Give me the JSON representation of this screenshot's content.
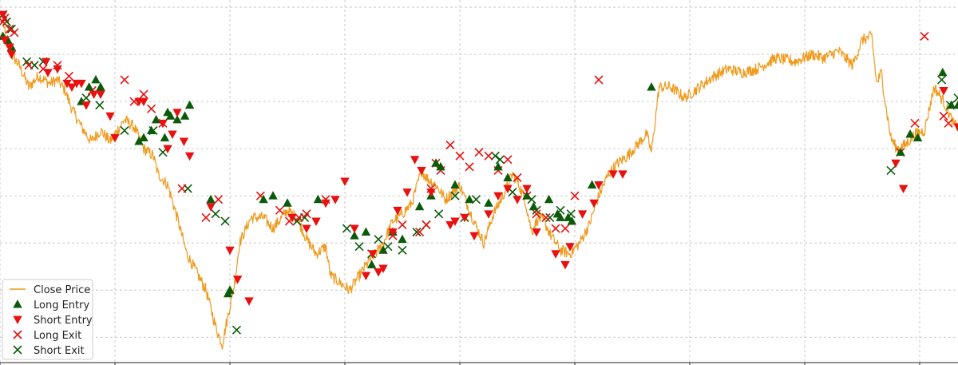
{
  "chart_data": {
    "type": "line",
    "title": "",
    "xlabel": "",
    "ylabel": "",
    "grid": true,
    "legend_position": "bottom-left",
    "xlim": [
      0,
      1000
    ],
    "ylim": [
      0,
      100
    ],
    "x_ticks": [
      0,
      120,
      240,
      360,
      480,
      600,
      720,
      840,
      960
    ],
    "y_ticks": [
      7,
      20,
      33,
      46,
      59,
      72,
      85,
      98
    ],
    "colors": {
      "close_price": "#f09a1c",
      "long_entry": "#0a5a0a",
      "short_entry": "#e8110f",
      "long_exit": "#e8110f",
      "short_exit": "#0a5a0a"
    },
    "close_price_anchors": [
      [
        3,
        94
      ],
      [
        7,
        88
      ],
      [
        12,
        85
      ],
      [
        20,
        82
      ],
      [
        30,
        76
      ],
      [
        40,
        79
      ],
      [
        52,
        77
      ],
      [
        60,
        78
      ],
      [
        68,
        75
      ],
      [
        75,
        70
      ],
      [
        85,
        65
      ],
      [
        95,
        61
      ],
      [
        105,
        64
      ],
      [
        115,
        61
      ],
      [
        130,
        67
      ],
      [
        140,
        65
      ],
      [
        150,
        59
      ],
      [
        160,
        57
      ],
      [
        165,
        52
      ],
      [
        175,
        49
      ],
      [
        185,
        40
      ],
      [
        195,
        30
      ],
      [
        205,
        25
      ],
      [
        215,
        20
      ],
      [
        225,
        10
      ],
      [
        232,
        5
      ],
      [
        238,
        13
      ],
      [
        245,
        22
      ],
      [
        250,
        33
      ],
      [
        262,
        40
      ],
      [
        275,
        40
      ],
      [
        285,
        37
      ],
      [
        300,
        42
      ],
      [
        310,
        40
      ],
      [
        320,
        34
      ],
      [
        330,
        30
      ],
      [
        340,
        32
      ],
      [
        345,
        24
      ],
      [
        355,
        22
      ],
      [
        365,
        20
      ],
      [
        375,
        24
      ],
      [
        385,
        28
      ],
      [
        395,
        31
      ],
      [
        400,
        33
      ],
      [
        410,
        39
      ],
      [
        420,
        41
      ],
      [
        430,
        44
      ],
      [
        440,
        53
      ],
      [
        445,
        51
      ],
      [
        455,
        49
      ],
      [
        465,
        45
      ],
      [
        480,
        49
      ],
      [
        490,
        42
      ],
      [
        498,
        37
      ],
      [
        505,
        33
      ],
      [
        515,
        41
      ],
      [
        525,
        46
      ],
      [
        535,
        52
      ],
      [
        540,
        50
      ],
      [
        548,
        45
      ],
      [
        555,
        36
      ],
      [
        562,
        40
      ],
      [
        568,
        39
      ],
      [
        575,
        35
      ],
      [
        585,
        31
      ],
      [
        595,
        30
      ],
      [
        605,
        33
      ],
      [
        615,
        38
      ],
      [
        625,
        46
      ],
      [
        635,
        52
      ],
      [
        645,
        55
      ],
      [
        655,
        57
      ],
      [
        665,
        60
      ],
      [
        675,
        63
      ],
      [
        680,
        58
      ],
      [
        688,
        76
      ],
      [
        700,
        76
      ],
      [
        715,
        73
      ],
      [
        730,
        76
      ],
      [
        745,
        79
      ],
      [
        760,
        81
      ],
      [
        775,
        80
      ],
      [
        790,
        81
      ],
      [
        810,
        84
      ],
      [
        830,
        83
      ],
      [
        848,
        85
      ],
      [
        860,
        84
      ],
      [
        875,
        86
      ],
      [
        890,
        82
      ],
      [
        900,
        89
      ],
      [
        910,
        90
      ],
      [
        915,
        77
      ],
      [
        920,
        80
      ],
      [
        925,
        70
      ],
      [
        930,
        62
      ],
      [
        936,
        59
      ],
      [
        945,
        60
      ],
      [
        955,
        63
      ],
      [
        965,
        64
      ],
      [
        975,
        76
      ],
      [
        985,
        72
      ],
      [
        995,
        66
      ],
      [
        1000,
        65
      ]
    ],
    "long_entry": [
      [
        3,
        90
      ],
      [
        8,
        89
      ],
      [
        12,
        87
      ],
      [
        85,
        72
      ],
      [
        93,
        76
      ],
      [
        100,
        78
      ],
      [
        105,
        76
      ],
      [
        145,
        61
      ],
      [
        150,
        62
      ],
      [
        158,
        64
      ],
      [
        163,
        67
      ],
      [
        172,
        62
      ],
      [
        175,
        69
      ],
      [
        178,
        68
      ],
      [
        185,
        67
      ],
      [
        193,
        68
      ],
      [
        198,
        71
      ],
      [
        220,
        45
      ],
      [
        238,
        19
      ],
      [
        240,
        20
      ],
      [
        275,
        45
      ],
      [
        285,
        46
      ],
      [
        300,
        44
      ],
      [
        332,
        45
      ],
      [
        370,
        35
      ],
      [
        382,
        36
      ],
      [
        388,
        27
      ],
      [
        400,
        31
      ],
      [
        410,
        36
      ],
      [
        420,
        34
      ],
      [
        438,
        43
      ],
      [
        450,
        46
      ],
      [
        455,
        55
      ],
      [
        460,
        54
      ],
      [
        475,
        49
      ],
      [
        490,
        45
      ],
      [
        510,
        44
      ],
      [
        520,
        54
      ],
      [
        530,
        51
      ],
      [
        550,
        46
      ],
      [
        557,
        43
      ],
      [
        573,
        45
      ],
      [
        582,
        41
      ],
      [
        585,
        40
      ],
      [
        593,
        40
      ],
      [
        597,
        39
      ],
      [
        618,
        49
      ],
      [
        680,
        76
      ],
      [
        940,
        58
      ],
      [
        950,
        63
      ],
      [
        958,
        62
      ],
      [
        984,
        80
      ],
      [
        993,
        71
      ],
      [
        1000,
        71
      ]
    ],
    "short_entry": [
      [
        3,
        96
      ],
      [
        5,
        89
      ],
      [
        10,
        87
      ],
      [
        12,
        85
      ],
      [
        48,
        83
      ],
      [
        50,
        80
      ],
      [
        60,
        81
      ],
      [
        70,
        77
      ],
      [
        75,
        76
      ],
      [
        80,
        77
      ],
      [
        85,
        77
      ],
      [
        90,
        71
      ],
      [
        98,
        74
      ],
      [
        105,
        74
      ],
      [
        115,
        68
      ],
      [
        120,
        62
      ],
      [
        145,
        72
      ],
      [
        150,
        72
      ],
      [
        170,
        66
      ],
      [
        175,
        59
      ],
      [
        180,
        63
      ],
      [
        185,
        69
      ],
      [
        192,
        61
      ],
      [
        198,
        57
      ],
      [
        220,
        43
      ],
      [
        240,
        31
      ],
      [
        248,
        23
      ],
      [
        260,
        17
      ],
      [
        305,
        40
      ],
      [
        320,
        37
      ],
      [
        330,
        39
      ],
      [
        340,
        44
      ],
      [
        350,
        45
      ],
      [
        360,
        50
      ],
      [
        370,
        37
      ],
      [
        382,
        24
      ],
      [
        389,
        30
      ],
      [
        395,
        25
      ],
      [
        400,
        26
      ],
      [
        410,
        36
      ],
      [
        415,
        42
      ],
      [
        425,
        47
      ],
      [
        433,
        56
      ],
      [
        440,
        53
      ],
      [
        450,
        47
      ],
      [
        470,
        38
      ],
      [
        475,
        39
      ],
      [
        485,
        40
      ],
      [
        495,
        35
      ],
      [
        510,
        41
      ],
      [
        520,
        46
      ],
      [
        530,
        48
      ],
      [
        540,
        45
      ],
      [
        550,
        48
      ],
      [
        560,
        36
      ],
      [
        580,
        30
      ],
      [
        590,
        27
      ],
      [
        595,
        32
      ],
      [
        608,
        41
      ],
      [
        620,
        44
      ],
      [
        625,
        49
      ],
      [
        640,
        52
      ],
      [
        650,
        52
      ],
      [
        935,
        55
      ],
      [
        943,
        48
      ],
      [
        985,
        75
      ],
      [
        1000,
        65
      ]
    ],
    "long_exit": [
      [
        3,
        94
      ],
      [
        5,
        95
      ],
      [
        10,
        92
      ],
      [
        15,
        91
      ],
      [
        30,
        82
      ],
      [
        45,
        81
      ],
      [
        60,
        82
      ],
      [
        72,
        79
      ],
      [
        96,
        75
      ],
      [
        130,
        78
      ],
      [
        140,
        72
      ],
      [
        150,
        74
      ],
      [
        158,
        70
      ],
      [
        170,
        66
      ],
      [
        190,
        48
      ],
      [
        215,
        40
      ],
      [
        228,
        45
      ],
      [
        272,
        46
      ],
      [
        292,
        42
      ],
      [
        302,
        39
      ],
      [
        312,
        40
      ],
      [
        320,
        41
      ],
      [
        340,
        45
      ],
      [
        410,
        35
      ],
      [
        420,
        38
      ],
      [
        438,
        36
      ],
      [
        445,
        38
      ],
      [
        450,
        48
      ],
      [
        455,
        55
      ],
      [
        460,
        53
      ],
      [
        470,
        60
      ],
      [
        480,
        57
      ],
      [
        490,
        54
      ],
      [
        500,
        58
      ],
      [
        510,
        57
      ],
      [
        520,
        53
      ],
      [
        530,
        56
      ],
      [
        540,
        51
      ],
      [
        550,
        46
      ],
      [
        560,
        41
      ],
      [
        570,
        40
      ],
      [
        580,
        37
      ],
      [
        590,
        37
      ],
      [
        600,
        46
      ],
      [
        625,
        78
      ],
      [
        940,
        58
      ],
      [
        955,
        66
      ],
      [
        965,
        90
      ],
      [
        985,
        68
      ],
      [
        990,
        66
      ]
    ],
    "short_exit": [
      [
        3,
        96
      ],
      [
        7,
        94
      ],
      [
        12,
        92
      ],
      [
        28,
        83
      ],
      [
        36,
        82
      ],
      [
        45,
        83
      ],
      [
        90,
        73
      ],
      [
        104,
        71
      ],
      [
        130,
        64
      ],
      [
        160,
        64
      ],
      [
        170,
        58
      ],
      [
        196,
        48
      ],
      [
        225,
        41
      ],
      [
        235,
        39
      ],
      [
        247,
        9
      ],
      [
        310,
        39
      ],
      [
        318,
        40
      ],
      [
        362,
        37
      ],
      [
        375,
        32
      ],
      [
        388,
        30
      ],
      [
        395,
        34
      ],
      [
        405,
        32
      ],
      [
        420,
        31
      ],
      [
        435,
        36
      ],
      [
        445,
        38
      ],
      [
        458,
        41
      ],
      [
        475,
        46
      ],
      [
        485,
        40
      ],
      [
        497,
        45
      ],
      [
        517,
        57
      ],
      [
        522,
        56
      ],
      [
        535,
        47
      ],
      [
        555,
        45
      ],
      [
        560,
        42
      ],
      [
        574,
        40
      ],
      [
        585,
        42
      ],
      [
        596,
        41
      ],
      [
        930,
        53
      ],
      [
        983,
        78
      ],
      [
        992,
        71
      ],
      [
        1000,
        73
      ]
    ],
    "legend": {
      "close_price": "Close Price",
      "long_entry": "Long Entry",
      "short_entry": "Short Entry",
      "long_exit": "Long Exit",
      "short_exit": "Short Exit"
    }
  }
}
